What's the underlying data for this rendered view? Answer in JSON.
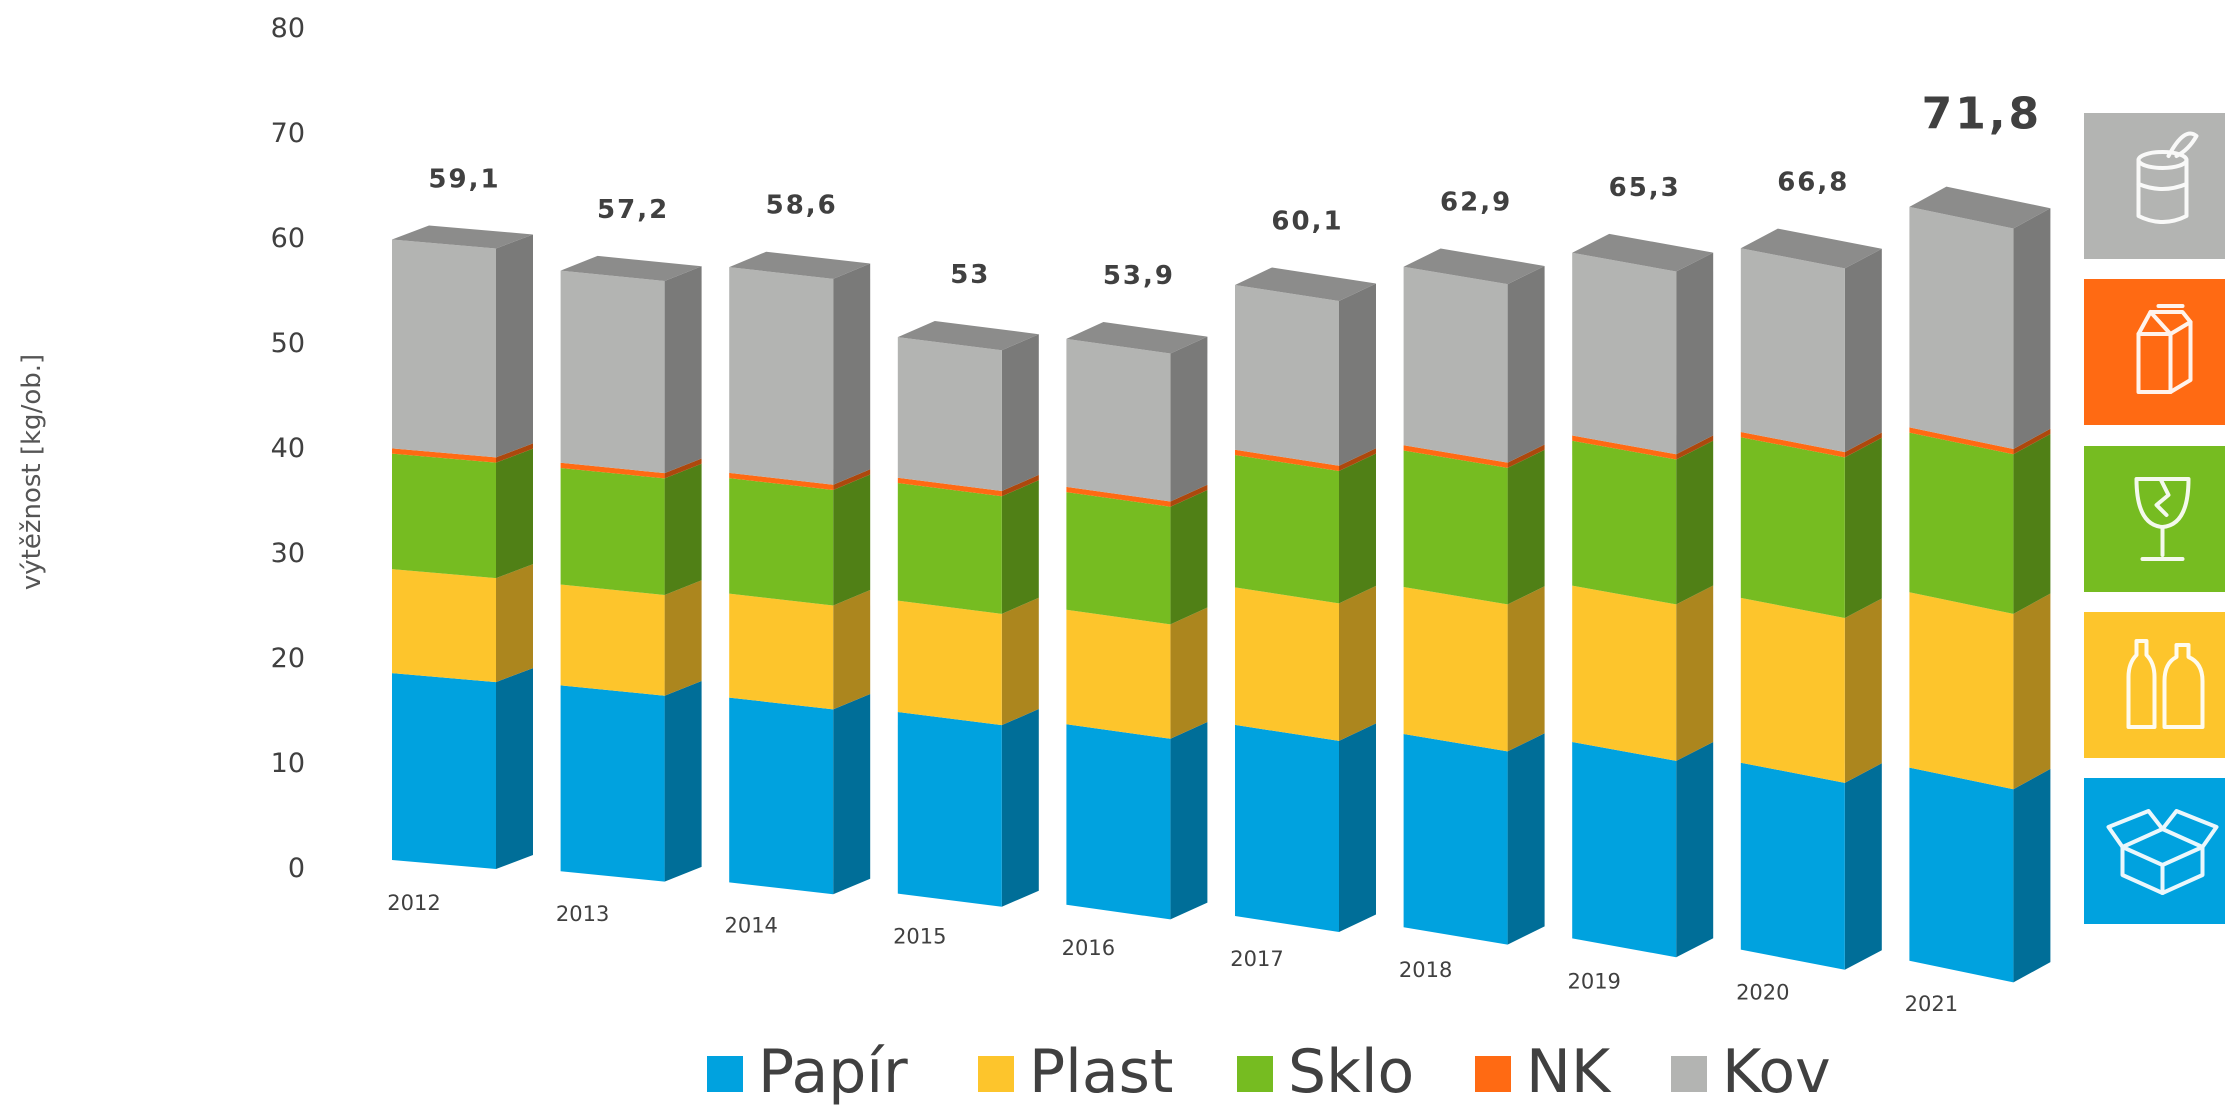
{
  "chart_data": {
    "type": "bar",
    "stacked": true,
    "categories": [
      "2012",
      "2013",
      "2014",
      "2015",
      "2016",
      "2017",
      "2018",
      "2019",
      "2020",
      "2021"
    ],
    "series": [
      {
        "name": "Papír",
        "color": "#00A2DF",
        "values": [
          17.8,
          17.7,
          17.6,
          17.3,
          17.2,
          18.2,
          18.4,
          18.7,
          17.8,
          18.4
        ]
      },
      {
        "name": "Plast",
        "color": "#FDC52C",
        "values": [
          9.9,
          9.6,
          9.9,
          10.6,
          10.9,
          13.1,
          14.0,
          14.9,
          15.7,
          16.7
        ]
      },
      {
        "name": "Sklo",
        "color": "#76BC21",
        "values": [
          11.0,
          11.1,
          11.0,
          11.2,
          11.2,
          12.6,
          13.0,
          13.8,
          15.3,
          15.2
        ]
      },
      {
        "name": "NK",
        "color": "#FF6A13",
        "values": [
          0.5,
          0.5,
          0.5,
          0.5,
          0.5,
          0.5,
          0.5,
          0.5,
          0.5,
          0.5
        ]
      },
      {
        "name": "Kov",
        "color": "#B3B4B2",
        "values": [
          19.9,
          18.3,
          19.6,
          13.4,
          14.1,
          15.7,
          17.0,
          17.4,
          17.5,
          21.0
        ]
      }
    ],
    "totals": [
      "59,1",
      "57,2",
      "58,6",
      "53",
      "53,9",
      "60,1",
      "62,9",
      "65,3",
      "66,8",
      "71,8"
    ],
    "highlight_total_index": 9,
    "ylabel": "výtěžnost [kg/ob.]",
    "xlabel": "",
    "ylim": [
      0,
      80
    ],
    "yticks": [
      "0",
      "10",
      "20",
      "30",
      "40",
      "50",
      "60",
      "70",
      "80"
    ],
    "legend": [
      "Papír",
      "Plast",
      "Sklo",
      "NK",
      "Kov"
    ],
    "legend_position": "bottom",
    "grid": false
  },
  "side_icons": [
    {
      "icon": "metal-can-icon",
      "color": "#B3B4B2"
    },
    {
      "icon": "beverage-carton-icon",
      "color": "#FF6A13"
    },
    {
      "icon": "broken-glass-icon",
      "color": "#76BC21"
    },
    {
      "icon": "plastic-bottles-icon",
      "color": "#FDC52C"
    },
    {
      "icon": "paper-box-icon",
      "color": "#00A2DF"
    }
  ]
}
